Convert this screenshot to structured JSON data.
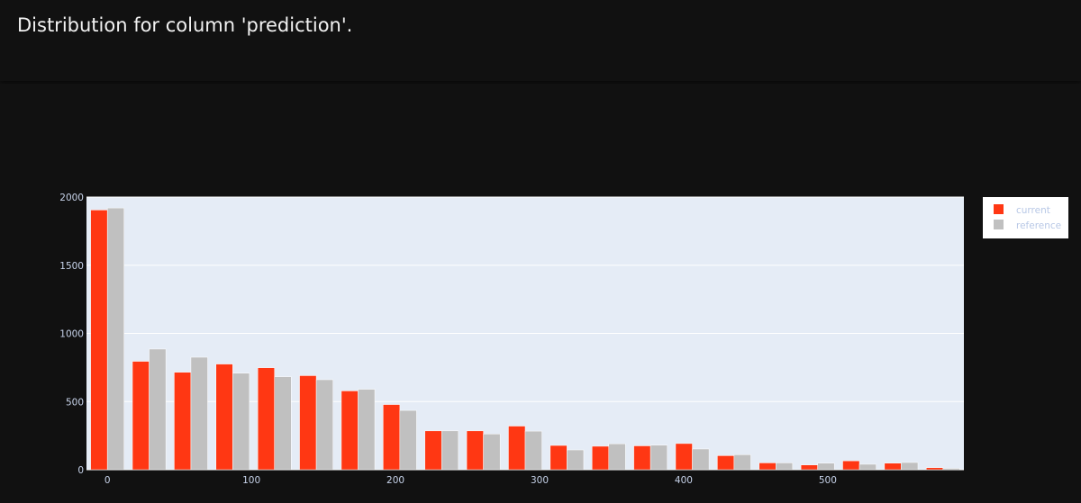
{
  "page": {
    "title": "Distribution for column 'prediction'."
  },
  "colors": {
    "background": "#111111",
    "plot_bg": "#e5ecf6",
    "grid": "#ffffff",
    "tick_text": "#c7d3ea",
    "legend_bg": "#ffffff",
    "legend_text": "#b8c8e6"
  },
  "chart_data": {
    "type": "bar",
    "barmode": "group",
    "x": [
      0,
      29,
      58,
      87,
      116,
      145,
      174,
      203,
      232,
      261,
      290,
      319,
      348,
      377,
      406,
      435,
      464,
      493,
      522,
      551,
      580
    ],
    "series": [
      {
        "name": "current",
        "color": "#ff3713",
        "values": [
          1905,
          795,
          715,
          775,
          748,
          690,
          578,
          478,
          285,
          285,
          320,
          178,
          172,
          175,
          192,
          103,
          50,
          35,
          65,
          48,
          15
        ]
      },
      {
        "name": "reference",
        "color": "#c0c0c0",
        "values": [
          1920,
          885,
          825,
          708,
          682,
          660,
          590,
          435,
          285,
          262,
          283,
          145,
          190,
          180,
          152,
          110,
          50,
          48,
          40,
          53,
          10
        ]
      }
    ],
    "xticks": [
      0,
      100,
      200,
      300,
      400,
      500
    ],
    "yticks": [
      0,
      500,
      1000,
      1500,
      2000
    ],
    "xlim": [
      -14.5,
      594.5
    ],
    "ylim": [
      0,
      2000
    ],
    "grid": true,
    "legend_position": "top-right",
    "title": "",
    "xlabel": "",
    "ylabel": ""
  }
}
